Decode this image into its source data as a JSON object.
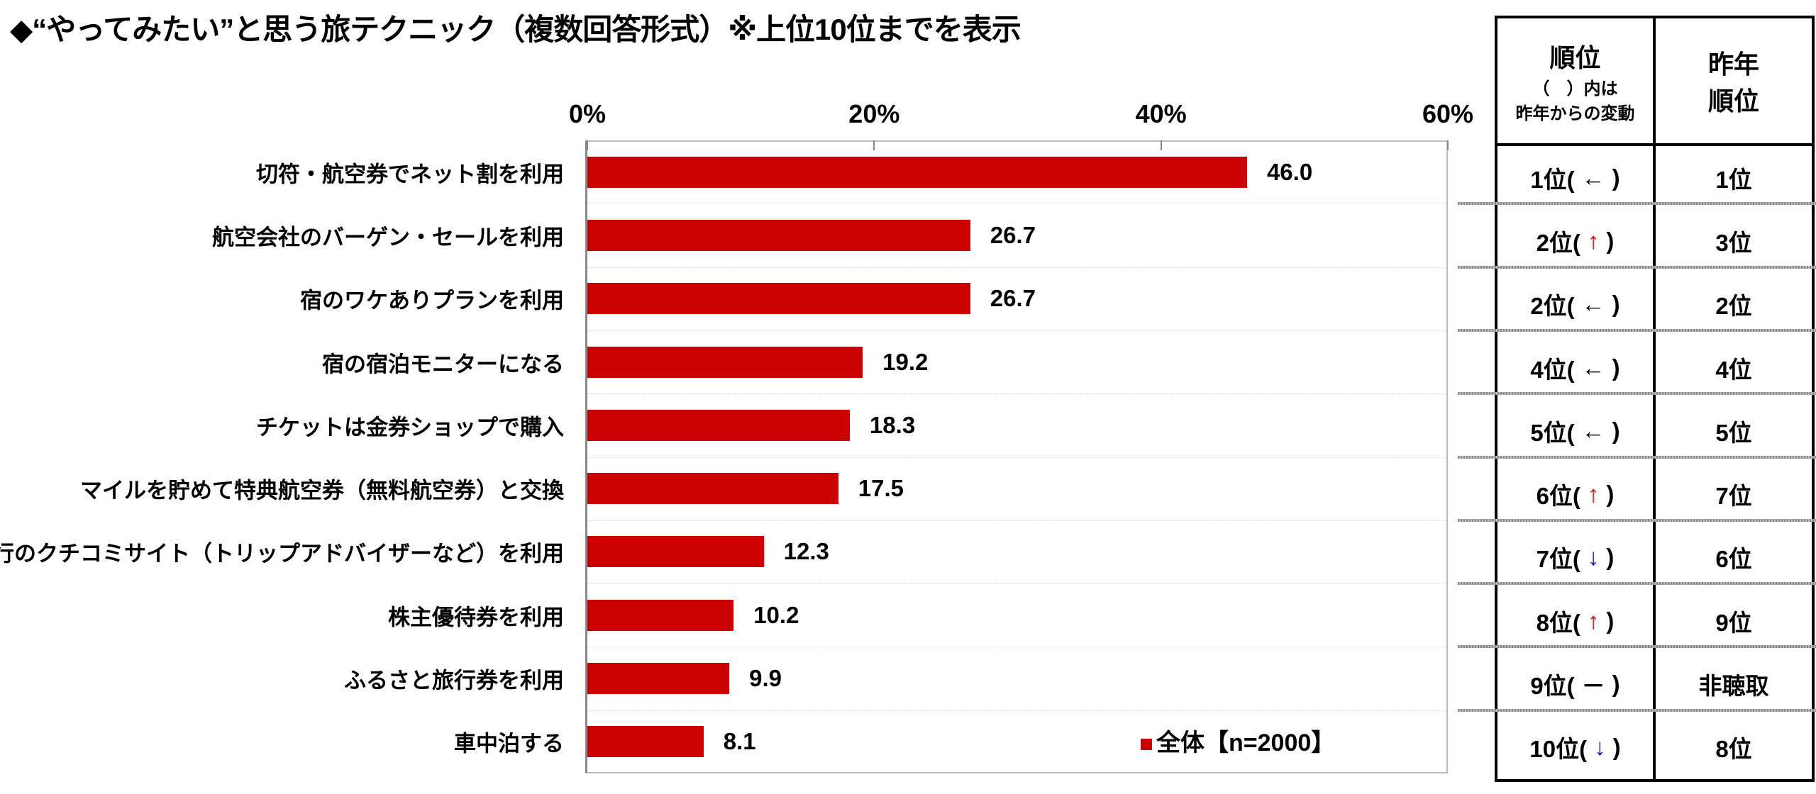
{
  "title": "◆“やってみたい”と思う旅テクニック（複数回答形式）※上位10位までを表示",
  "chart_data": {
    "type": "bar",
    "orientation": "horizontal",
    "title": "◆“やってみたい”と思う旅テクニック（複数回答形式）※上位10位までを表示",
    "categories": [
      "切符・航空券でネット割を利用",
      "航空会社のバーゲン・セールを利用",
      "宿のワケありプランを利用",
      "宿の宿泊モニターになる",
      "チケットは金券ショップで購入",
      "マイルを貯めて特典航空券（無料航空券）と交換",
      "旅行のクチコミサイト（トリップアドバイザーなど）を利用",
      "株主優待券を利用",
      "ふるさと旅行券を利用",
      "車中泊する"
    ],
    "series": [
      {
        "name": "全体【n=2000】",
        "color": "#cc0000",
        "values": [
          46.0,
          26.7,
          26.7,
          19.2,
          18.3,
          17.5,
          12.3,
          10.2,
          9.9,
          8.1
        ]
      }
    ],
    "value_labels": [
      "46.0",
      "26.7",
      "26.7",
      "19.2",
      "18.3",
      "17.5",
      "12.3",
      "10.2",
      "9.9",
      "8.1"
    ],
    "xlim": [
      0,
      60
    ],
    "xticks": [
      "0%",
      "20%",
      "40%",
      "60%"
    ],
    "xtick_values": [
      0,
      20,
      40,
      60
    ],
    "legend": {
      "label": "全体【n=2000】",
      "position": "bottom-right"
    }
  },
  "table": {
    "header_rank": "順位",
    "header_rank_note1": "（　）内は",
    "header_rank_note2": "昨年からの変動",
    "header_last_1": "昨年",
    "header_last_2": "順位",
    "rows": [
      {
        "rank": "1位(",
        "change": "←",
        "dir": "same",
        "close": ")",
        "last": "1位"
      },
      {
        "rank": "2位(",
        "change": "↑",
        "dir": "up",
        "close": ")",
        "last": "3位"
      },
      {
        "rank": "2位(",
        "change": "←",
        "dir": "same",
        "close": ")",
        "last": "2位"
      },
      {
        "rank": "4位(",
        "change": "←",
        "dir": "same",
        "close": ")",
        "last": "4位"
      },
      {
        "rank": "5位(",
        "change": "←",
        "dir": "same",
        "close": ")",
        "last": "5位"
      },
      {
        "rank": "6位(",
        "change": "↑",
        "dir": "up",
        "close": ")",
        "last": "7位"
      },
      {
        "rank": "7位(",
        "change": "↓",
        "dir": "down",
        "close": ")",
        "last": "6位"
      },
      {
        "rank": "8位(",
        "change": "↑",
        "dir": "up",
        "close": ")",
        "last": "9位"
      },
      {
        "rank": "9位(",
        "change": "－",
        "dir": "none",
        "close": ")",
        "last": "非聴取"
      },
      {
        "rank": "10位(",
        "change": "↓",
        "dir": "down",
        "close": ")",
        "last": "8位"
      }
    ]
  }
}
